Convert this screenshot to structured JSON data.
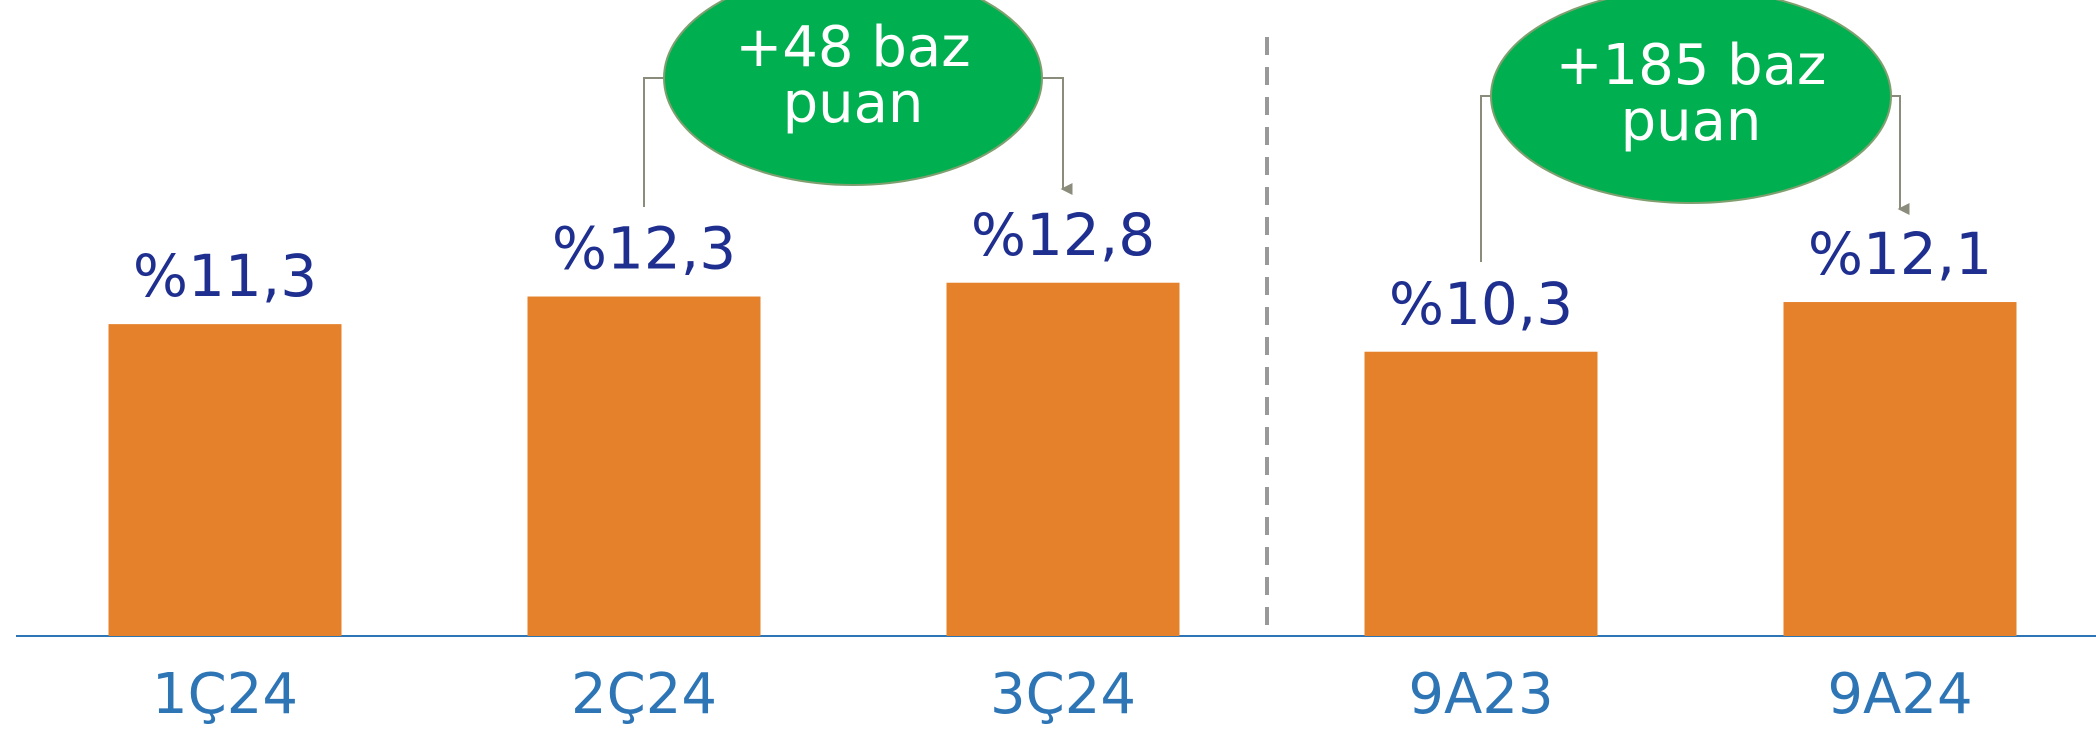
{
  "chart_data": {
    "type": "bar",
    "categories": [
      "1Ç24",
      "2Ç24",
      "3Ç24",
      "9A23",
      "9A24"
    ],
    "values": [
      11.3,
      12.3,
      12.8,
      10.3,
      12.1
    ],
    "value_labels": [
      "%11,3",
      "%12,3",
      "%12,8",
      "%10,3",
      "%12,1"
    ],
    "color": "#e5812a",
    "annotations": [
      "+48 baz puan",
      "+185 baz puan"
    ]
  }
}
